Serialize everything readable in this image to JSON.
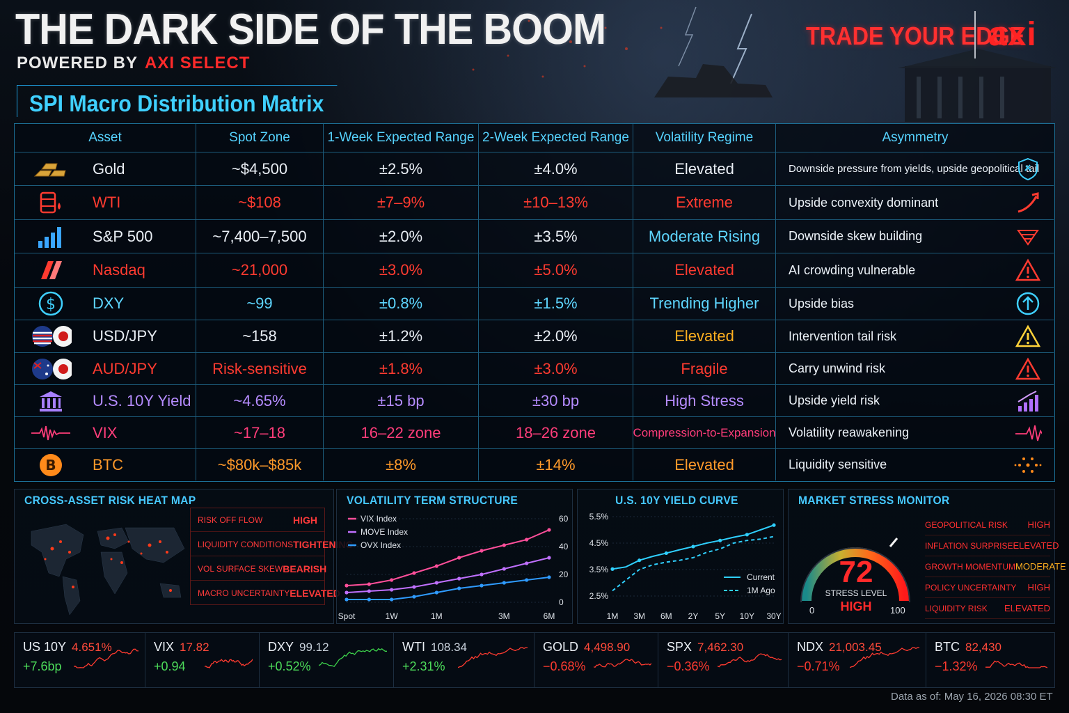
{
  "header": {
    "title": "THE DARK SIDE OF THE BOOM",
    "powered_prefix": "POWERED BY",
    "powered_brand": "AXI SELECT",
    "tagline": "TRADE YOUR EDGE",
    "brand": "axi"
  },
  "matrix": {
    "title": "SPI Macro Distribution Matrix",
    "columns": [
      "Asset",
      "Spot Zone",
      "1-Week Expected Range",
      "2-Week Expected Range",
      "Volatility Regime",
      "Asymmetry"
    ],
    "rows": [
      {
        "asset": "Gold",
        "spot": "~$4,500",
        "w1": "±2.5%",
        "w2": "±4.0%",
        "regime": "Elevated",
        "asym": "Downside pressure from yields, upside geopolitical tail",
        "color": "#e9eef4",
        "regime_color": "#e9eef4",
        "icon": "gold-bars-icon",
        "asym_icon": "shield-icon"
      },
      {
        "asset": "WTI",
        "spot": "~$108",
        "w1": "±7–9%",
        "w2": "±10–13%",
        "regime": "Extreme",
        "asym": "Upside convexity dominant",
        "color": "#ff3b30",
        "regime_color": "#ff3b30",
        "icon": "oil-barrel-icon",
        "asym_icon": "up-arrow-curve-icon"
      },
      {
        "asset": "S&P 500",
        "spot": "~7,400–7,500",
        "w1": "±2.0%",
        "w2": "±3.5%",
        "regime": "Moderate Rising",
        "asym": "Downside skew building",
        "color": "#e9eef4",
        "regime_color": "#5ed6ff",
        "icon": "bar-chart-icon",
        "asym_icon": "funnel-icon"
      },
      {
        "asset": "Nasdaq",
        "spot": "~21,000",
        "w1": "±3.0%",
        "w2": "±5.0%",
        "regime": "Elevated",
        "asym": "AI crowding vulnerable",
        "color": "#ff3b30",
        "regime_color": "#ff3b30",
        "icon": "nasdaq-logo-icon",
        "asym_icon": "warning-icon"
      },
      {
        "asset": "DXY",
        "spot": "~99",
        "w1": "±0.8%",
        "w2": "±1.5%",
        "regime": "Trending Higher",
        "asym": "Upside bias",
        "color": "#5ed6ff",
        "regime_color": "#5ed6ff",
        "icon": "dollar-icon",
        "asym_icon": "up-circle-icon"
      },
      {
        "asset": "USD/JPY",
        "spot": "~158",
        "w1": "±1.2%",
        "w2": "±2.0%",
        "regime": "Elevated",
        "asym": "Intervention tail risk",
        "color": "#e9eef4",
        "regime_color": "#ffb020",
        "icon": "us-japan-flags-icon",
        "asym_icon": "warning-icon"
      },
      {
        "asset": "AUD/JPY",
        "spot": "Risk-sensitive",
        "w1": "±1.8%",
        "w2": "±3.0%",
        "regime": "Fragile",
        "asym": "Carry unwind risk",
        "color": "#ff3b30",
        "regime_color": "#ff3b30",
        "icon": "au-japan-flags-icon",
        "asym_icon": "warning-icon"
      },
      {
        "asset": "U.S. 10Y Yield",
        "spot": "~4.65%",
        "w1": "±15 bp",
        "w2": "±30 bp",
        "regime": "High Stress",
        "asym": "Upside yield risk",
        "color": "#b58cff",
        "regime_color": "#b58cff",
        "icon": "bank-icon",
        "asym_icon": "rising-bars-icon"
      },
      {
        "asset": "VIX",
        "spot": "~17–18",
        "w1": "16–22 zone",
        "w2": "18–26 zone",
        "regime": "Compression-to-Expansion",
        "asym": "Volatility reawakening",
        "color": "#ff3d7a",
        "regime_color": "#ff3d7a",
        "icon": "waveform-icon",
        "asym_icon": "pulse-icon"
      },
      {
        "asset": "BTC",
        "spot": "~$80k–$85k",
        "w1": "±8%",
        "w2": "±14%",
        "regime": "Elevated",
        "asym": "Liquidity sensitive",
        "color": "#ff9a2a",
        "regime_color": "#ff9a2a",
        "icon": "bitcoin-icon",
        "asym_icon": "network-dots-icon"
      }
    ]
  },
  "heatmap": {
    "title": "CROSS-ASSET RISK HEAT MAP",
    "items": [
      {
        "label": "RISK OFF FLOW",
        "value": "HIGH"
      },
      {
        "label": "LIQUIDITY CONDITIONS",
        "value": "TIGHTENING"
      },
      {
        "label": "VOL SURFACE SKEW",
        "value": "BEARISH"
      },
      {
        "label": "MACRO UNCERTAINTY",
        "value": "ELEVATED"
      }
    ]
  },
  "stress": {
    "title": "MARKET STRESS MONITOR",
    "value": "72",
    "label": "STRESS LEVEL",
    "level": "HIGH",
    "min": "0",
    "max": "100",
    "items": [
      {
        "label": "GEOPOLITICAL RISK",
        "value": "HIGH"
      },
      {
        "label": "INFLATION SURPRISE",
        "value": "ELEVATED"
      },
      {
        "label": "GROWTH MOMENTUM",
        "value": "MODERATE"
      },
      {
        "label": "POLICY UNCERTAINTY",
        "value": "HIGH"
      },
      {
        "label": "LIQUIDITY RISK",
        "value": "ELEVATED"
      }
    ]
  },
  "chart_data": [
    {
      "type": "line",
      "title": "VOLATILITY TERM STRUCTURE",
      "x": [
        "Spot",
        "",
        "1W",
        "",
        "1M",
        "",
        "",
        "3M",
        "",
        "6M"
      ],
      "xticks": [
        "Spot",
        "1W",
        "1M",
        "3M",
        "6M"
      ],
      "yticks": [
        "0",
        "20",
        "40",
        "60"
      ],
      "ylim": [
        0,
        60
      ],
      "legend": "top-left",
      "series": [
        {
          "name": "VIX Index",
          "color": "#ff4f9a",
          "values": [
            12,
            13,
            16,
            21,
            26,
            32,
            37,
            41,
            45,
            52
          ]
        },
        {
          "name": "MOVE Index",
          "color": "#c070ff",
          "values": [
            7,
            8,
            9,
            11,
            14,
            17,
            20,
            24,
            28,
            32
          ]
        },
        {
          "name": "OVX Index",
          "color": "#2f9bff",
          "values": [
            2,
            2,
            2,
            4,
            7,
            10,
            12,
            14,
            16,
            18
          ]
        }
      ]
    },
    {
      "type": "line",
      "title": "U.S. 10Y YIELD CURVE",
      "xticks": [
        "1M",
        "3M",
        "6M",
        "2Y",
        "5Y",
        "10Y",
        "30Y"
      ],
      "yticks": [
        "2.5%",
        "3.5%",
        "4.5%",
        "5.5%"
      ],
      "ylim": [
        2.5,
        5.5
      ],
      "legend": "bottom-right",
      "series": [
        {
          "name": "Current",
          "color": "#2fd0ff",
          "values": [
            3.52,
            3.6,
            3.85,
            4.0,
            4.12,
            4.25,
            4.37,
            4.5,
            4.6,
            4.72,
            4.82,
            5.0,
            5.18
          ]
        },
        {
          "name": "1M Ago",
          "color": "#2fd0ff",
          "dashed": true,
          "values": [
            2.7,
            3.1,
            3.5,
            3.68,
            3.78,
            3.85,
            3.95,
            4.15,
            4.28,
            4.5,
            4.6,
            4.65,
            4.75
          ]
        }
      ]
    }
  ],
  "ticker": [
    {
      "name": "US 10Y",
      "value": "4.651%",
      "change": "+7.6bp",
      "dir": "up",
      "trend": "up-red"
    },
    {
      "name": "VIX",
      "value": "17.82",
      "change": "+0.94",
      "dir": "up",
      "trend": "up-red"
    },
    {
      "name": "DXY",
      "value": "99.12",
      "change": "+0.52%",
      "dir": "up",
      "trend": "up-green"
    },
    {
      "name": "WTI",
      "value": "108.34",
      "change": "+2.31%",
      "dir": "up",
      "trend": "up-red"
    },
    {
      "name": "GOLD",
      "value": "4,498.90",
      "change": "−0.68%",
      "dir": "down",
      "trend": "down-red"
    },
    {
      "name": "SPX",
      "value": "7,462.30",
      "change": "−0.36%",
      "dir": "down",
      "trend": "up-red"
    },
    {
      "name": "NDX",
      "value": "21,003.45",
      "change": "−0.71%",
      "dir": "down",
      "trend": "up-red"
    },
    {
      "name": "BTC",
      "value": "82,430",
      "change": "−1.32%",
      "dir": "down",
      "trend": "down-red"
    }
  ],
  "footer": {
    "as_of": "Data as of: May 16, 2026 08:30 ET"
  },
  "colors": {
    "accent": "#3fd0ff",
    "danger": "#ff3030",
    "up": "#4ddc5a",
    "down": "#ff3b30"
  }
}
